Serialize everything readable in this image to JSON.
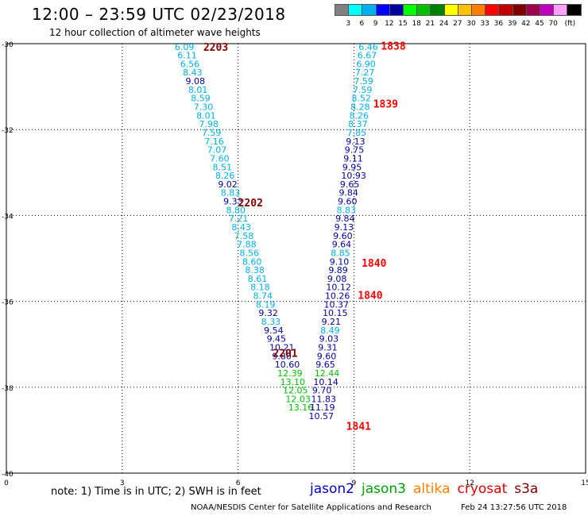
{
  "header": {
    "title": "12:00 – 23:59 UTC 02/23/2018",
    "subtitle": "12 hour collection of altimeter wave heights"
  },
  "colorbar": {
    "unit": "(ft)",
    "colors": [
      "#808080",
      "#00ffff",
      "#00b0f0",
      "#0000ff",
      "#0000a0",
      "#00ff00",
      "#00c000",
      "#008000",
      "#ffff00",
      "#ffc000",
      "#ff8000",
      "#ff0000",
      "#c00000",
      "#800000",
      "#a00050",
      "#c000c0",
      "#ffa0ff",
      "#000000"
    ],
    "labels": [
      "3",
      "6",
      "9",
      "12",
      "15",
      "18",
      "21",
      "24",
      "27",
      "30",
      "33",
      "36",
      "39",
      "42",
      "45",
      "70"
    ]
  },
  "map": {
    "x_ticks": [
      "0",
      "3",
      "6",
      "9",
      "12",
      "15"
    ],
    "y_ticks": [
      "-30",
      "-32",
      "-34",
      "-36",
      "-38",
      "-40"
    ],
    "x_range": [
      0,
      15
    ],
    "y_range": [
      -30,
      -40
    ]
  },
  "tracks": [
    {
      "time": "2203",
      "x": 5.1,
      "y": -30.07,
      "color": "#800000"
    },
    {
      "time": "2202",
      "x": 6.0,
      "y": -33.7,
      "color": "#800000"
    },
    {
      "time": "2201",
      "x": 6.9,
      "y": -37.2,
      "color": "#800000"
    },
    {
      "time": "1838",
      "x": 9.7,
      "y": -30.05,
      "color": "#ff0000"
    },
    {
      "time": "1839",
      "x": 9.5,
      "y": -31.4,
      "color": "#ff0000"
    },
    {
      "time": "1840",
      "x": 9.2,
      "y": -35.1,
      "color": "#ff0000"
    },
    {
      "time": "1840",
      "x": 9.1,
      "y": -35.85,
      "color": "#ff0000"
    },
    {
      "time": "1841",
      "x": 8.8,
      "y": -38.9,
      "color": "#ff0000"
    }
  ],
  "readings_west": [
    {
      "v": "6.09",
      "x": 4.36,
      "y": -30.07,
      "c": "#00b0f0"
    },
    {
      "v": "6.11",
      "x": 4.43,
      "y": -30.27,
      "c": "#00b0f0"
    },
    {
      "v": "6.56",
      "x": 4.5,
      "y": -30.47,
      "c": "#00b0f0"
    },
    {
      "v": "8.43",
      "x": 4.57,
      "y": -30.67,
      "c": "#00b0f0"
    },
    {
      "v": "9.08",
      "x": 4.64,
      "y": -30.87,
      "c": "#0000a0"
    },
    {
      "v": "8.01",
      "x": 4.71,
      "y": -31.07,
      "c": "#00b0f0"
    },
    {
      "v": "8.59",
      "x": 4.78,
      "y": -31.27,
      "c": "#00b0f0"
    },
    {
      "v": "7.30",
      "x": 4.85,
      "y": -31.47,
      "c": "#00b0f0"
    },
    {
      "v": "8.01",
      "x": 4.92,
      "y": -31.67,
      "c": "#00b0f0"
    },
    {
      "v": "7.98",
      "x": 4.99,
      "y": -31.87,
      "c": "#00b0f0"
    },
    {
      "v": "7.59",
      "x": 5.06,
      "y": -32.07,
      "c": "#00b0f0"
    },
    {
      "v": "7.16",
      "x": 5.13,
      "y": -32.27,
      "c": "#00b0f0"
    },
    {
      "v": "7.07",
      "x": 5.2,
      "y": -32.47,
      "c": "#00b0f0"
    },
    {
      "v": "7.60",
      "x": 5.27,
      "y": -32.67,
      "c": "#00b0f0"
    },
    {
      "v": "8.51",
      "x": 5.34,
      "y": -32.87,
      "c": "#00b0f0"
    },
    {
      "v": "8.26",
      "x": 5.41,
      "y": -33.07,
      "c": "#00b0f0"
    },
    {
      "v": "9.02",
      "x": 5.48,
      "y": -33.27,
      "c": "#0000a0"
    },
    {
      "v": "8.83",
      "x": 5.55,
      "y": -33.47,
      "c": "#00b0f0"
    },
    {
      "v": "9.33",
      "x": 5.62,
      "y": -33.67,
      "c": "#0000a0"
    },
    {
      "v": "8.80",
      "x": 5.69,
      "y": -33.87,
      "c": "#00b0f0"
    },
    {
      "v": "7.21",
      "x": 5.76,
      "y": -34.07,
      "c": "#00b0f0"
    },
    {
      "v": "8.43",
      "x": 5.83,
      "y": -34.27,
      "c": "#00b0f0"
    },
    {
      "v": "7.58",
      "x": 5.9,
      "y": -34.47,
      "c": "#00b0f0"
    },
    {
      "v": "7.88",
      "x": 5.97,
      "y": -34.67,
      "c": "#00b0f0"
    },
    {
      "v": "8.56",
      "x": 6.04,
      "y": -34.87,
      "c": "#00b0f0"
    },
    {
      "v": "8.60",
      "x": 6.11,
      "y": -35.07,
      "c": "#00b0f0"
    },
    {
      "v": "8.38",
      "x": 6.18,
      "y": -35.27,
      "c": "#00b0f0"
    },
    {
      "v": "8.61",
      "x": 6.25,
      "y": -35.47,
      "c": "#00b0f0"
    },
    {
      "v": "8.18",
      "x": 6.32,
      "y": -35.67,
      "c": "#00b0f0"
    },
    {
      "v": "8.74",
      "x": 6.39,
      "y": -35.87,
      "c": "#00b0f0"
    },
    {
      "v": "8.19",
      "x": 6.46,
      "y": -36.07,
      "c": "#00b0f0"
    },
    {
      "v": "9.32",
      "x": 6.53,
      "y": -36.27,
      "c": "#0000a0"
    },
    {
      "v": "8.33",
      "x": 6.6,
      "y": -36.47,
      "c": "#00b0f0"
    },
    {
      "v": "9.54",
      "x": 6.67,
      "y": -36.67,
      "c": "#0000a0"
    },
    {
      "v": "9.45",
      "x": 6.74,
      "y": -36.87,
      "c": "#0000a0"
    },
    {
      "v": "10.21",
      "x": 6.81,
      "y": -37.07,
      "c": "#0000a0"
    },
    {
      "v": "9.80",
      "x": 6.88,
      "y": -37.27,
      "c": "#0000a0"
    },
    {
      "v": "10.60",
      "x": 6.95,
      "y": -37.47,
      "c": "#0000a0"
    },
    {
      "v": "12.39",
      "x": 7.02,
      "y": -37.67,
      "c": "#00c000"
    },
    {
      "v": "13.10",
      "x": 7.09,
      "y": -37.87,
      "c": "#00c000"
    },
    {
      "v": "12.05",
      "x": 7.16,
      "y": -38.07,
      "c": "#00c000"
    },
    {
      "v": "12.03",
      "x": 7.23,
      "y": -38.27,
      "c": "#00c000"
    },
    {
      "v": "13.16",
      "x": 7.3,
      "y": -38.47,
      "c": "#00c000"
    }
  ],
  "readings_east": [
    {
      "v": "6.46",
      "x": 9.12,
      "y": -30.07,
      "c": "#00b0f0"
    },
    {
      "v": "6.67",
      "x": 9.09,
      "y": -30.27,
      "c": "#00b0f0"
    },
    {
      "v": "6.90",
      "x": 9.06,
      "y": -30.47,
      "c": "#00b0f0"
    },
    {
      "v": "7.27",
      "x": 9.03,
      "y": -30.67,
      "c": "#00b0f0"
    },
    {
      "v": "7.59",
      "x": 9.0,
      "y": -30.87,
      "c": "#00b0f0"
    },
    {
      "v": "7.59",
      "x": 8.97,
      "y": -31.07,
      "c": "#00b0f0"
    },
    {
      "v": "8.52",
      "x": 8.94,
      "y": -31.27,
      "c": "#00b0f0"
    },
    {
      "v": "8.28",
      "x": 8.91,
      "y": -31.47,
      "c": "#00b0f0"
    },
    {
      "v": "8.26",
      "x": 8.88,
      "y": -31.67,
      "c": "#00b0f0"
    },
    {
      "v": "8.37",
      "x": 8.85,
      "y": -31.87,
      "c": "#00b0f0"
    },
    {
      "v": "7.85",
      "x": 8.82,
      "y": -32.07,
      "c": "#00b0f0"
    },
    {
      "v": "9.13",
      "x": 8.79,
      "y": -32.27,
      "c": "#0000a0"
    },
    {
      "v": "9.75",
      "x": 8.76,
      "y": -32.47,
      "c": "#0000a0"
    },
    {
      "v": "9.11",
      "x": 8.73,
      "y": -32.67,
      "c": "#0000a0"
    },
    {
      "v": "9.95",
      "x": 8.7,
      "y": -32.87,
      "c": "#0000a0"
    },
    {
      "v": "10.93",
      "x": 8.67,
      "y": -33.07,
      "c": "#0000a0"
    },
    {
      "v": "9.65",
      "x": 8.64,
      "y": -33.27,
      "c": "#0000a0"
    },
    {
      "v": "9.84",
      "x": 8.61,
      "y": -33.47,
      "c": "#0000a0"
    },
    {
      "v": "9.60",
      "x": 8.58,
      "y": -33.67,
      "c": "#0000a0"
    },
    {
      "v": "8.83",
      "x": 8.55,
      "y": -33.87,
      "c": "#00b0f0"
    },
    {
      "v": "9.84",
      "x": 8.52,
      "y": -34.07,
      "c": "#0000a0"
    },
    {
      "v": "9.13",
      "x": 8.49,
      "y": -34.27,
      "c": "#0000a0"
    },
    {
      "v": "9.60",
      "x": 8.46,
      "y": -34.47,
      "c": "#0000a0"
    },
    {
      "v": "9.64",
      "x": 8.43,
      "y": -34.67,
      "c": "#0000a0"
    },
    {
      "v": "8.85",
      "x": 8.4,
      "y": -34.87,
      "c": "#00b0f0"
    },
    {
      "v": "9.10",
      "x": 8.37,
      "y": -35.07,
      "c": "#0000a0"
    },
    {
      "v": "9.89",
      "x": 8.34,
      "y": -35.27,
      "c": "#0000a0"
    },
    {
      "v": "9.08",
      "x": 8.31,
      "y": -35.47,
      "c": "#0000a0"
    },
    {
      "v": "10.12",
      "x": 8.28,
      "y": -35.67,
      "c": "#0000a0"
    },
    {
      "v": "10.26",
      "x": 8.25,
      "y": -35.87,
      "c": "#0000a0"
    },
    {
      "v": "10.37",
      "x": 8.22,
      "y": -36.07,
      "c": "#0000a0"
    },
    {
      "v": "10.15",
      "x": 8.19,
      "y": -36.27,
      "c": "#0000a0"
    },
    {
      "v": "9.21",
      "x": 8.16,
      "y": -36.47,
      "c": "#0000a0"
    },
    {
      "v": "8.49",
      "x": 8.13,
      "y": -36.67,
      "c": "#00b0f0"
    },
    {
      "v": "9.03",
      "x": 8.1,
      "y": -36.87,
      "c": "#0000a0"
    },
    {
      "v": "9.31",
      "x": 8.07,
      "y": -37.07,
      "c": "#0000a0"
    },
    {
      "v": "9.60",
      "x": 8.04,
      "y": -37.27,
      "c": "#0000a0"
    },
    {
      "v": "9.65",
      "x": 8.01,
      "y": -37.47,
      "c": "#0000a0"
    },
    {
      "v": "12.44",
      "x": 7.98,
      "y": -37.67,
      "c": "#00c000"
    },
    {
      "v": "10.14",
      "x": 7.95,
      "y": -37.87,
      "c": "#0000a0"
    },
    {
      "v": "9.70",
      "x": 7.92,
      "y": -38.07,
      "c": "#0000a0"
    },
    {
      "v": "11.83",
      "x": 7.89,
      "y": -38.27,
      "c": "#0000a0"
    },
    {
      "v": "11.19",
      "x": 7.86,
      "y": -38.47,
      "c": "#0000a0"
    },
    {
      "v": "10.57",
      "x": 7.83,
      "y": -38.67,
      "c": "#0000a0"
    }
  ],
  "footer": {
    "note": "note: 1) Time is in UTC; 2) SWH is in feet",
    "satellites": [
      {
        "name": "jason2",
        "color": "#0000c0"
      },
      {
        "name": "jason3",
        "color": "#00a000"
      },
      {
        "name": "altika",
        "color": "#ff8000"
      },
      {
        "name": "cryosat",
        "color": "#e00000"
      },
      {
        "name": "s3a",
        "color": "#800000"
      }
    ],
    "credit": "NOAA/NESDIS Center for Satellite Applications and Research",
    "generated": "Feb 24 13:27:56 UTC 2018"
  }
}
